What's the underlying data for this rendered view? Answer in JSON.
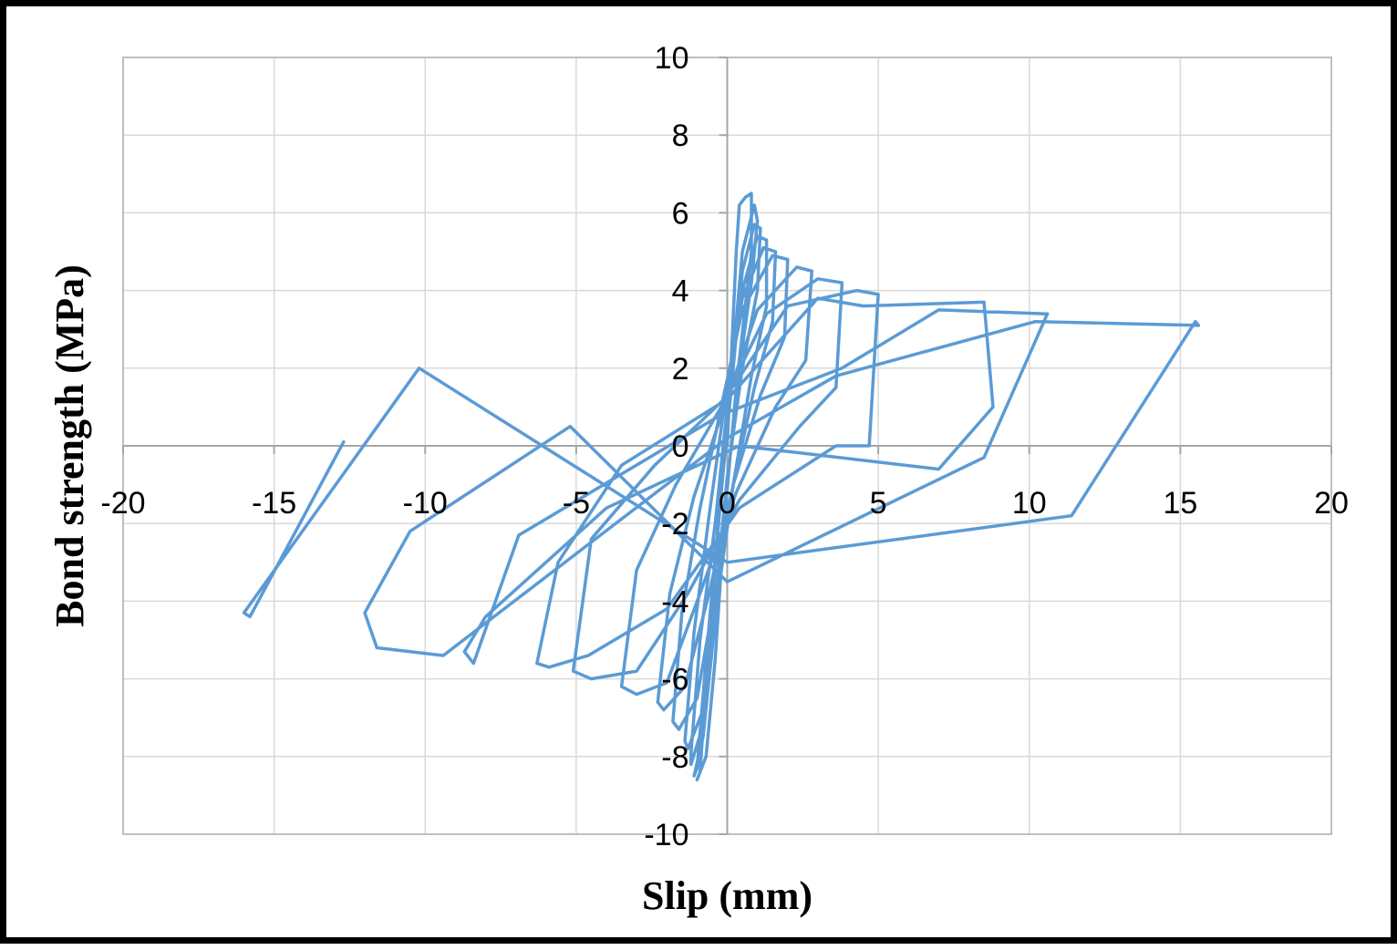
{
  "chart_data": {
    "type": "line",
    "title": "",
    "xlabel": "Slip (mm)",
    "ylabel": "Bond strength (MPa)",
    "xlim": [
      -20,
      20
    ],
    "ylim": [
      -10,
      10
    ],
    "xticks": [
      "-20",
      "-15",
      "-10",
      "-5",
      "0",
      "5",
      "10",
      "15",
      "20"
    ],
    "yticks": [
      "10",
      "8",
      "6",
      "4",
      "2",
      "0",
      "-2",
      "-4",
      "-6",
      "-8",
      "-10"
    ],
    "grid": true,
    "legend": "none",
    "line_color": "#5b9bd5",
    "series": [
      {
        "x": [
          0,
          0.3,
          0.4,
          0.6,
          0.8,
          0.8,
          0.3,
          -0.1,
          -0.4,
          -0.7,
          -1.0,
          -0.9,
          -0.6,
          -0.2,
          0.1,
          0.5,
          0.9,
          1.0,
          0.8,
          0.4,
          0.0,
          -0.4,
          -0.8,
          -1.1,
          -1.0,
          -0.7,
          -0.3,
          0.1,
          0.5,
          0.9,
          1.1,
          1.0,
          0.5,
          0.0,
          -0.4,
          -0.8,
          -1.2,
          -1.2,
          -0.9,
          -0.4,
          0.0,
          0.5,
          1.0,
          1.3,
          1.3,
          0.8,
          0.2,
          -0.3,
          -0.8,
          -1.3,
          -1.4,
          -1.1,
          -0.6,
          -0.1,
          0.5,
          1.2,
          1.6,
          1.5,
          0.9,
          0.2,
          -0.4,
          -1.0,
          -1.6,
          -1.8,
          -1.5,
          -0.9,
          -0.2,
          0.5,
          1.5,
          2.0,
          1.9,
          1.1,
          0.2,
          -0.6,
          -1.4,
          -2.1,
          -2.3,
          -1.9,
          -1.1,
          -0.1,
          1.0,
          2.3,
          2.8,
          2.6,
          1.6,
          0.3,
          -0.9,
          -2.0,
          -3.0,
          -3.5,
          -3.0,
          -1.7,
          -0.2,
          1.3,
          3.0,
          3.8,
          3.6,
          2.4,
          0.4,
          -1.3,
          -3.0,
          -4.5,
          -5.1,
          -4.5,
          -2.4,
          -0.1,
          2.0,
          4.3,
          5.0,
          4.7,
          3.6,
          0.4,
          -2.0,
          -4.6,
          -5.9,
          -6.3,
          -5.6,
          -3.5,
          0.0,
          3.0,
          4.5,
          8.5,
          8.8,
          7.0,
          0.4,
          -4.0,
          -8.0,
          -8.7,
          -8.4,
          -6.9,
          -0.2,
          3.8,
          7.0,
          10.5,
          10.6,
          8.5,
          0.0,
          -5.2,
          -10.5,
          -12.0,
          -11.6,
          -9.4,
          0.0,
          3.6,
          10.2,
          15.6,
          15.5,
          11.4,
          0.0,
          -10.2,
          -16.0,
          -15.8,
          -12.7
        ],
        "y": [
          0,
          5.0,
          6.2,
          6.4,
          6.5,
          5.0,
          1.5,
          -2.0,
          -5.5,
          -8.0,
          -8.6,
          -8.4,
          -5.0,
          -1.2,
          1.5,
          5.0,
          6.2,
          5.8,
          4.2,
          2.0,
          -1.0,
          -4.5,
          -7.5,
          -8.5,
          -8.3,
          -5.5,
          -2.0,
          1.2,
          4.5,
          5.7,
          5.6,
          4.0,
          2.0,
          -0.8,
          -4.0,
          -7.2,
          -8.2,
          -7.9,
          -5.0,
          -2.0,
          1.0,
          4.0,
          5.4,
          5.3,
          3.6,
          1.8,
          -1.0,
          -3.8,
          -6.8,
          -7.8,
          -7.6,
          -4.8,
          -1.8,
          1.0,
          3.8,
          5.1,
          5.0,
          3.2,
          1.5,
          -1.0,
          -3.8,
          -6.5,
          -7.3,
          -7.1,
          -4.3,
          -1.6,
          1.0,
          3.5,
          4.9,
          4.8,
          2.8,
          1.3,
          -1.0,
          -3.8,
          -6.2,
          -6.8,
          -6.6,
          -3.8,
          -1.3,
          1.0,
          3.5,
          4.6,
          4.5,
          2.2,
          1.0,
          -1.2,
          -3.8,
          -6.1,
          -6.4,
          -6.2,
          -3.2,
          -1.0,
          1.0,
          3.4,
          4.3,
          4.2,
          1.5,
          0.5,
          -1.4,
          -3.8,
          -5.8,
          -6.0,
          -5.8,
          -2.4,
          -0.5,
          1.2,
          3.6,
          4.0,
          3.9,
          0.0,
          0.0,
          -1.6,
          -4.2,
          -5.4,
          -5.7,
          -5.6,
          -3.0,
          -0.5,
          1.2,
          3.8,
          3.6,
          3.7,
          1.0,
          -0.6,
          0.0,
          -1.6,
          -4.4,
          -5.3,
          -5.6,
          -2.3,
          0.8,
          2.0,
          3.5,
          3.4,
          3.4,
          -0.3,
          -3.5,
          0.5,
          -2.2,
          -4.3,
          -5.2,
          -5.4,
          0.2,
          1.8,
          3.2,
          3.1,
          3.2,
          -1.8,
          -3.0,
          2.0,
          -4.3,
          -4.4,
          0.1
        ]
      }
    ]
  }
}
